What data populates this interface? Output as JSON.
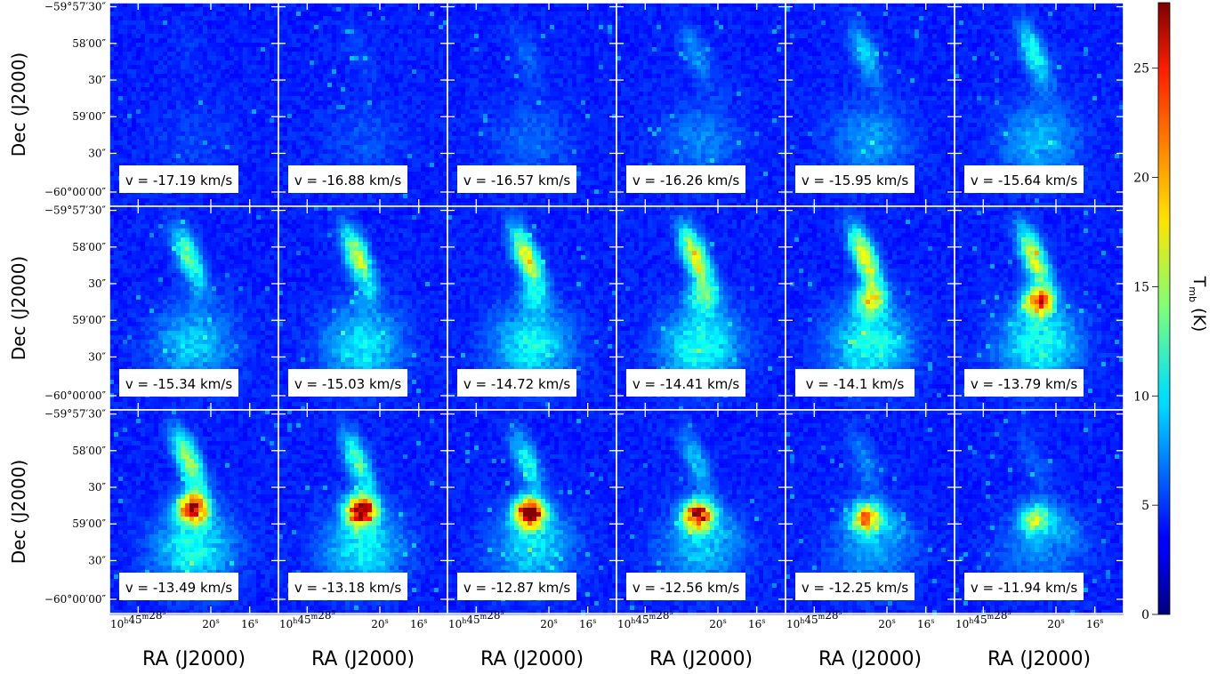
{
  "figure": {
    "ylabel": "Dec (J2000)",
    "xlabel": "RA (J2000)",
    "colorbar_label": "T",
    "colorbar_label_sub": "mb",
    "colorbar_label_unit": " (K)"
  },
  "chart_data": {
    "type": "heatmap",
    "grid": {
      "rows": 3,
      "cols": 6
    },
    "panels": [
      {
        "label": "v = -17.19 km/s",
        "velocity_kms": -17.19
      },
      {
        "label": "v = -16.88 km/s",
        "velocity_kms": -16.88
      },
      {
        "label": "v = -16.57 km/s",
        "velocity_kms": -16.57
      },
      {
        "label": "v = -16.26 km/s",
        "velocity_kms": -16.26
      },
      {
        "label": "v = -15.95 km/s",
        "velocity_kms": -15.95
      },
      {
        "label": "v = -15.64 km/s",
        "velocity_kms": -15.64
      },
      {
        "label": "v = -15.34 km/s",
        "velocity_kms": -15.34
      },
      {
        "label": "v = -15.03 km/s",
        "velocity_kms": -15.03
      },
      {
        "label": "v = -14.72 km/s",
        "velocity_kms": -14.72
      },
      {
        "label": "v = -14.41 km/s",
        "velocity_kms": -14.41
      },
      {
        "label": "v = -14.1 km/s",
        "velocity_kms": -14.1
      },
      {
        "label": "v = -13.79 km/s",
        "velocity_kms": -13.79
      },
      {
        "label": "v = -13.49 km/s",
        "velocity_kms": -13.49
      },
      {
        "label": "v = -13.18 km/s",
        "velocity_kms": -13.18
      },
      {
        "label": "v = -12.87 km/s",
        "velocity_kms": -12.87
      },
      {
        "label": "v = -12.56 km/s",
        "velocity_kms": -12.56
      },
      {
        "label": "v = -12.25 km/s",
        "velocity_kms": -12.25
      },
      {
        "label": "v = -11.94 km/s",
        "velocity_kms": -11.94
      }
    ],
    "x_axis": {
      "label": "RA (J2000)",
      "ticks": [
        {
          "text": "10h45m28s",
          "parts": [
            "10",
            "h",
            "45",
            "m",
            "28",
            "s"
          ]
        },
        {
          "text": "20s",
          "parts": [
            "20",
            "s"
          ]
        },
        {
          "text": "16s",
          "parts": [
            "16",
            "s"
          ]
        }
      ]
    },
    "y_axis": {
      "label": "Dec (J2000)",
      "ticks": [
        "−59°57′30″",
        "58′00″",
        "30″",
        "59′00″",
        "30″",
        "−60°00′00″"
      ]
    },
    "colorbar": {
      "colormap": "jet",
      "range": [
        0,
        28
      ],
      "ticks": [
        0,
        5,
        10,
        15,
        20,
        25
      ],
      "label": "Tmb (K)"
    }
  }
}
